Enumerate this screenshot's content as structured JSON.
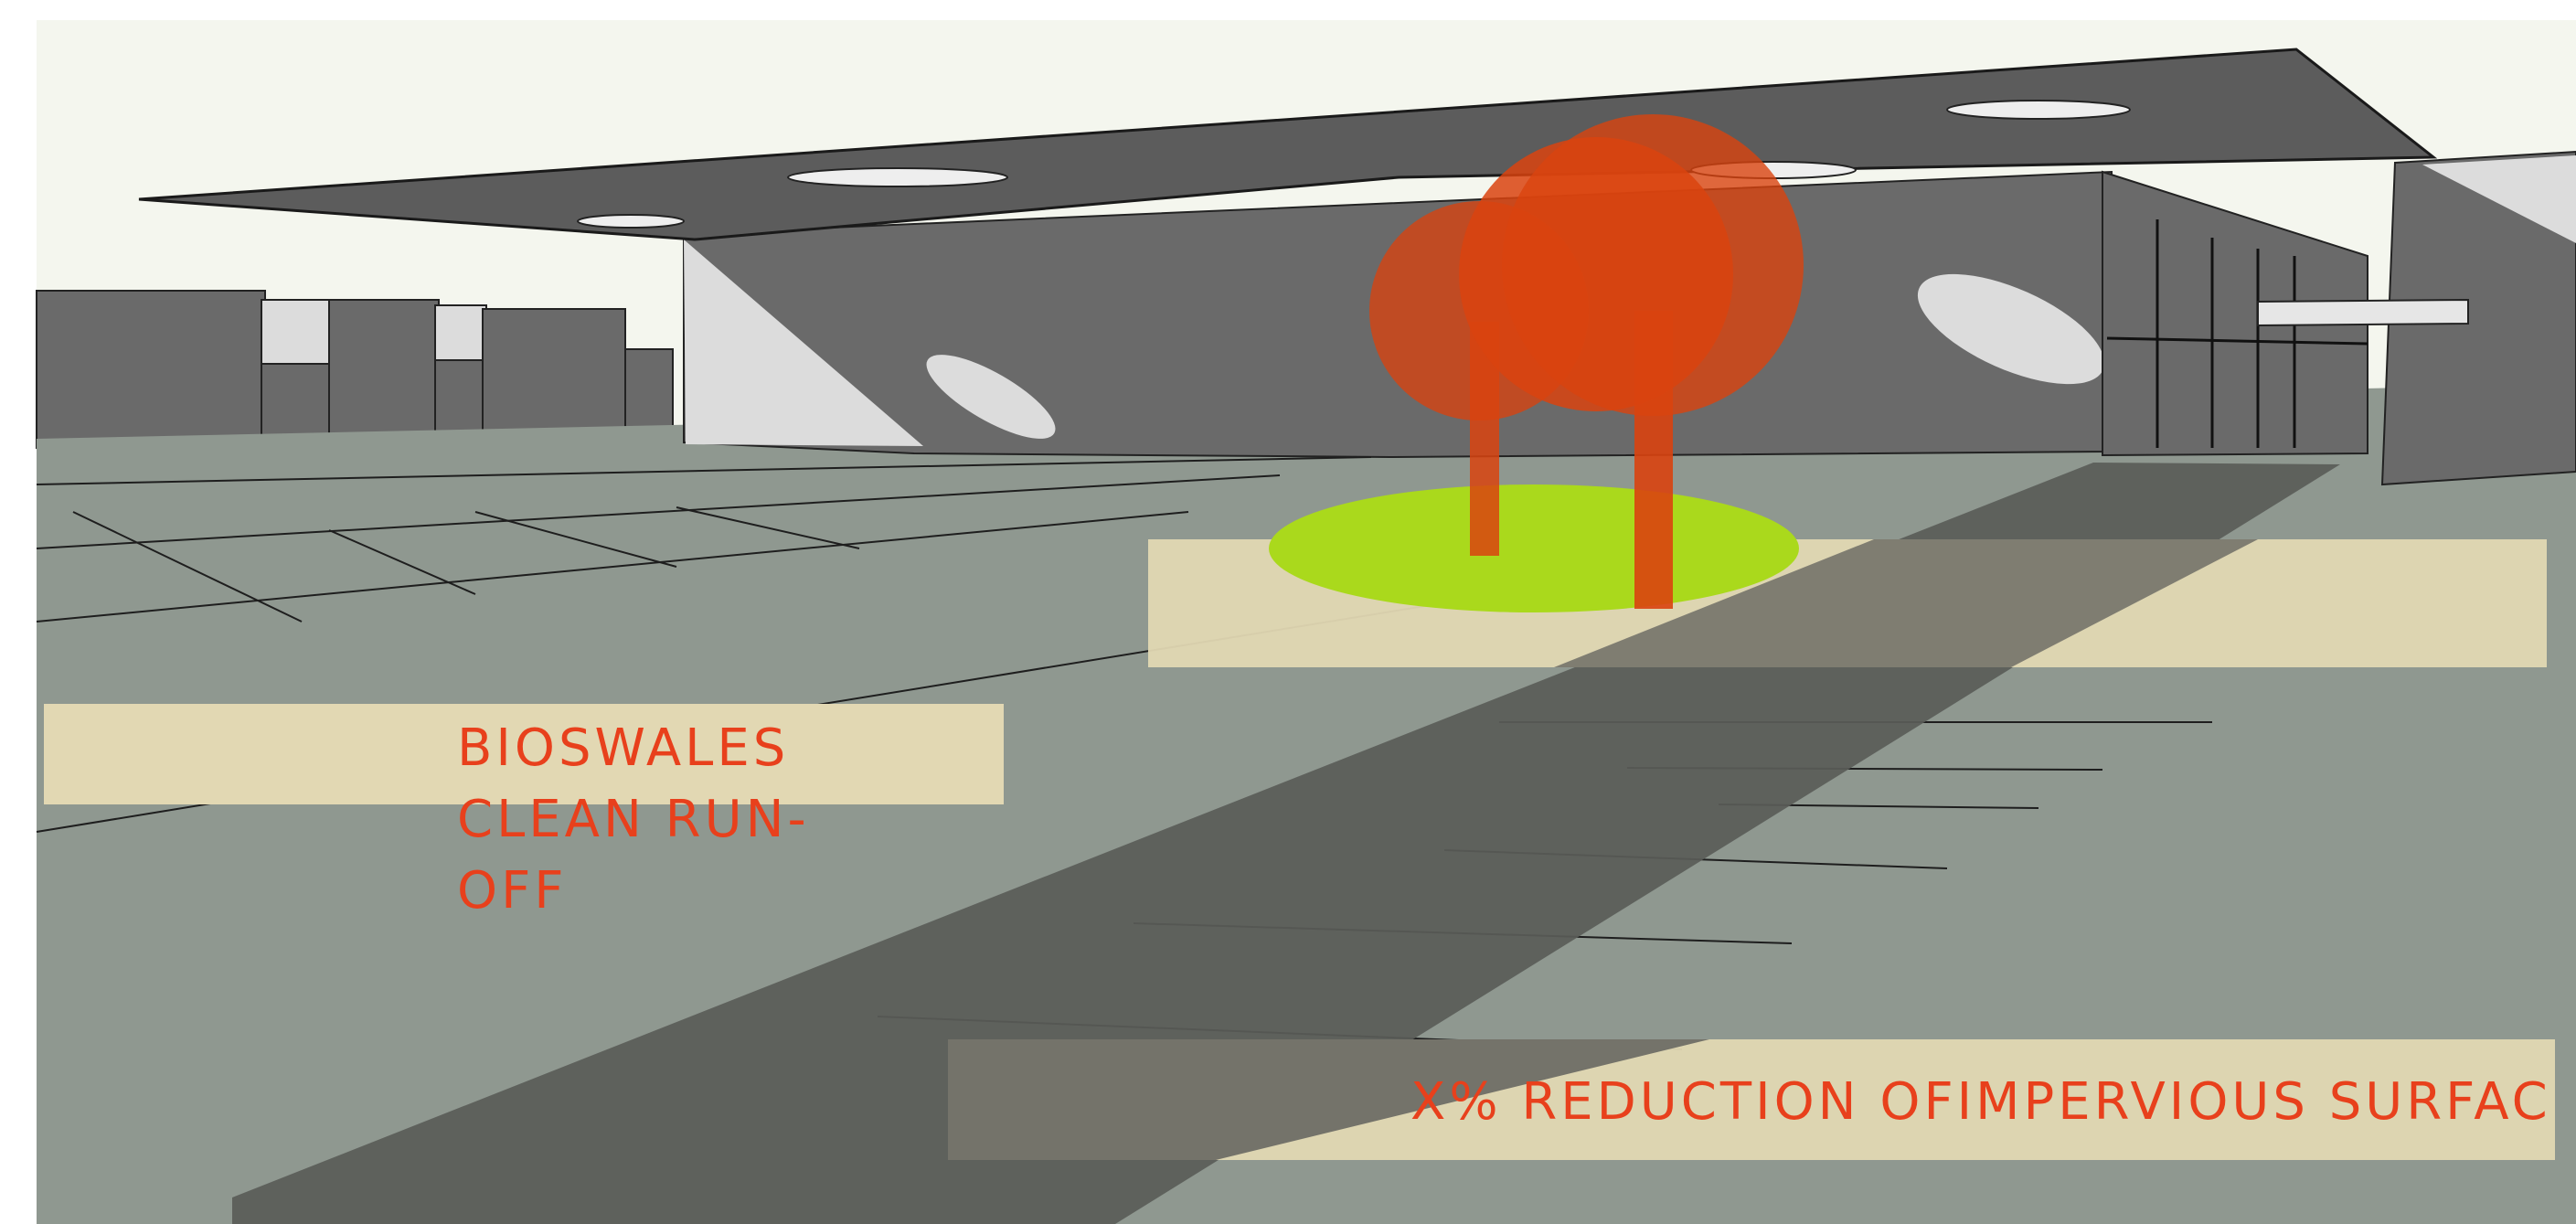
{
  "labels": {
    "bioswales": [
      "BIOSWALES",
      "CLEAN RUN-",
      "OFF"
    ],
    "impervious": "X% REDUCTION OFIMPERVIOUS SURFAC"
  },
  "colors": {
    "sky": "#f4f6ee",
    "ground": "#8f9890",
    "building": "#6a6a6a",
    "building_light": "#dcdcdc",
    "roof": "#5c5c5c",
    "shadow": "#5a5c58",
    "band": "#e2d8b3",
    "band_dark": "#74736a",
    "tree": "#d9430f",
    "grass": "#aad91c",
    "label": "#e8401c",
    "line": "#1e1e1e"
  }
}
